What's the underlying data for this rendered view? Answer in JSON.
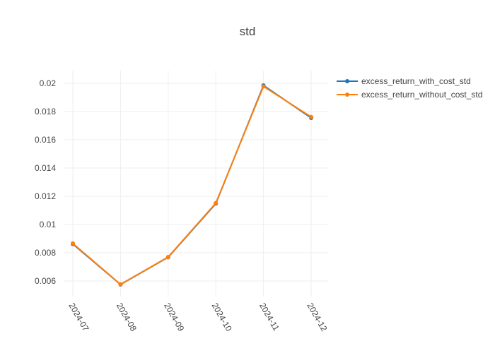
{
  "chart_data": {
    "type": "line",
    "title": "std",
    "xlabel": "",
    "ylabel": "",
    "categories": [
      "2024-07",
      "2024-08",
      "2024-09",
      "2024-10",
      "2024-11",
      "2024-12"
    ],
    "yticks": [
      0.006,
      0.008,
      0.01,
      0.012,
      0.014,
      0.016,
      0.018,
      0.02
    ],
    "ytick_labels": [
      "0.006",
      "0.008",
      "0.01",
      "0.012",
      "0.014",
      "0.016",
      "0.018",
      "0.02"
    ],
    "ylim": [
      0.0049,
      0.0209
    ],
    "grid": true,
    "legend_position": "top-right",
    "series": [
      {
        "name": "excess_return_with_cost_std",
        "color": "#1f77b4",
        "values": [
          0.00862,
          0.00575,
          0.00768,
          0.01148,
          0.01985,
          0.01755
        ]
      },
      {
        "name": "excess_return_without_cost_std",
        "color": "#ff7f0e",
        "values": [
          0.00866,
          0.00576,
          0.0077,
          0.01152,
          0.01978,
          0.01762
        ]
      }
    ]
  }
}
